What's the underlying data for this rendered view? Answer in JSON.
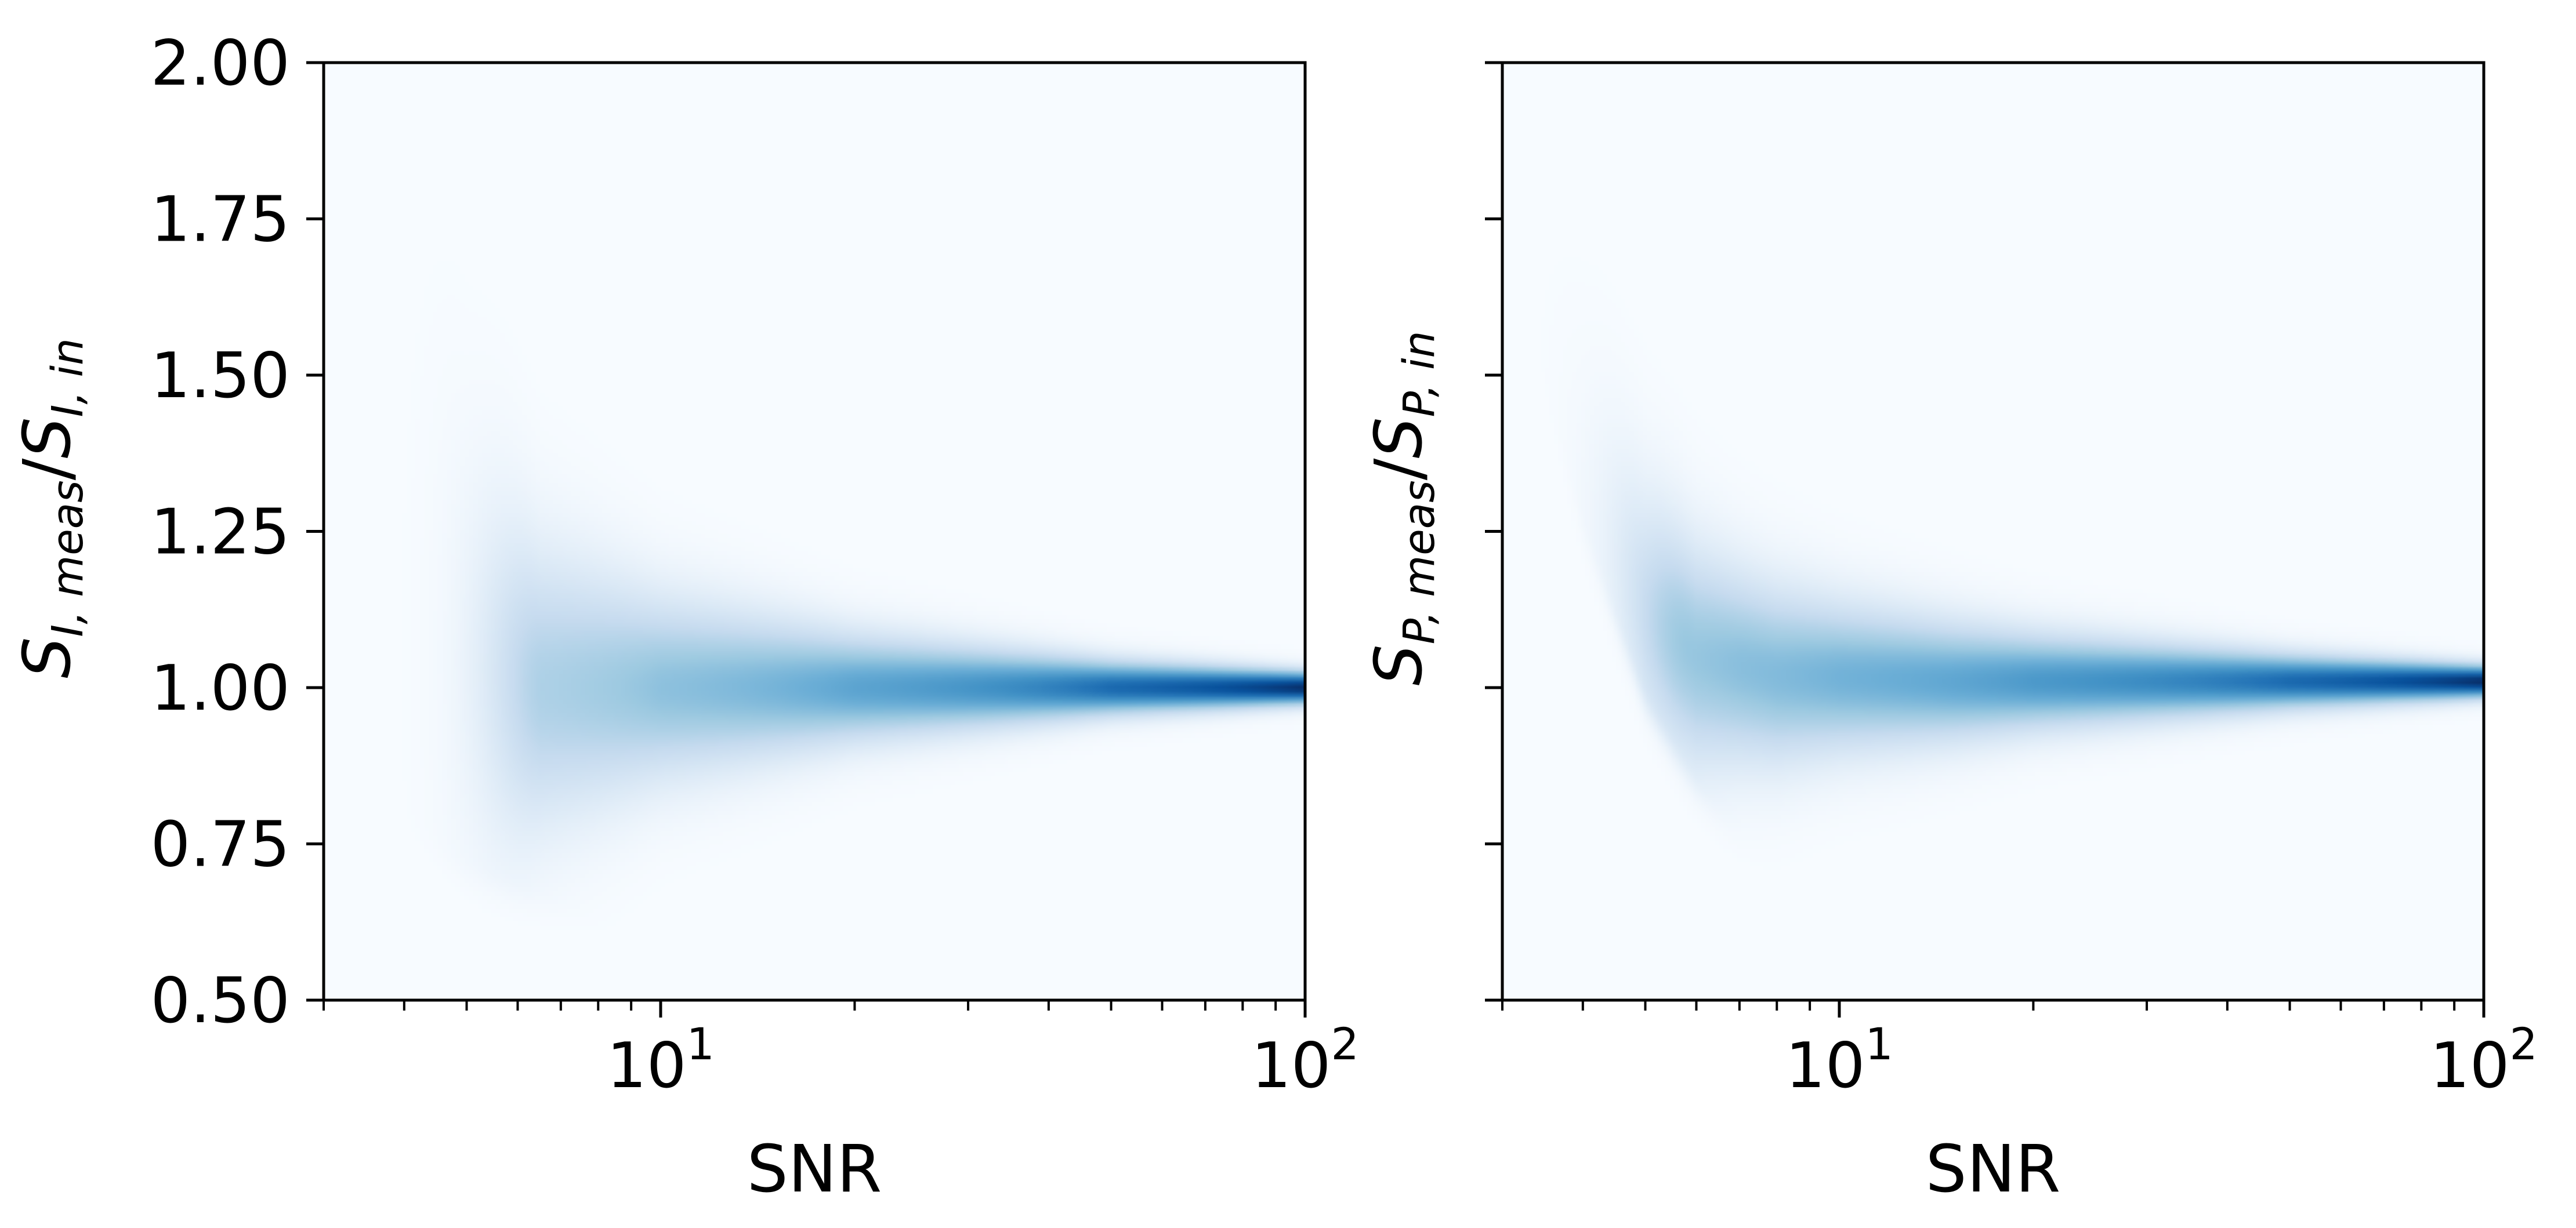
{
  "chart_data": [
    {
      "type": "heatmap",
      "panel": "left",
      "xlabel": "SNR",
      "ylabel": {
        "base": "S",
        "sub1": "I, meas",
        "slash": "/",
        "sub2": "I, in"
      },
      "xscale": "log",
      "xlim": [
        3,
        100
      ],
      "ylim": [
        0.5,
        2.0
      ],
      "x_ticks": [
        {
          "value": 10,
          "base": "10",
          "exp": "1"
        },
        {
          "value": 100,
          "base": "10",
          "exp": "2"
        }
      ],
      "y_ticks": [
        {
          "value": 0.5,
          "label": "0.50"
        },
        {
          "value": 0.75,
          "label": "0.75"
        },
        {
          "value": 1.0,
          "label": "1.00"
        },
        {
          "value": 1.25,
          "label": "1.25"
        },
        {
          "value": 1.5,
          "label": "1.50"
        },
        {
          "value": 1.75,
          "label": "1.75"
        },
        {
          "value": 2.0,
          "label": "2.00"
        }
      ],
      "density_model": {
        "peak_snr": 6.5,
        "mean_ratio_curve": [
          [
            3,
            1.1
          ],
          [
            5,
            1.04
          ],
          [
            6.5,
            1.0
          ],
          [
            10,
            1.0
          ],
          [
            30,
            1.0
          ],
          [
            100,
            1.0
          ]
        ],
        "spread_curve": [
          [
            3,
            0.5
          ],
          [
            4,
            0.35
          ],
          [
            5,
            0.2
          ],
          [
            6.5,
            0.13
          ],
          [
            10,
            0.085
          ],
          [
            20,
            0.05
          ],
          [
            50,
            0.025
          ],
          [
            100,
            0.015
          ]
        ],
        "lower_cutoff_curve": [
          [
            3,
            1.0
          ],
          [
            4,
            0.82
          ],
          [
            5,
            0.73
          ],
          [
            6.5,
            0.68
          ],
          [
            10,
            0.6
          ],
          [
            100,
            0.5
          ]
        ],
        "colormap": "Blues"
      },
      "grid": false,
      "legend": "none"
    },
    {
      "type": "heatmap",
      "panel": "right",
      "xlabel": "SNR",
      "ylabel": {
        "base": "S",
        "sub1": "P, meas",
        "slash": "/",
        "sub2": "P, in"
      },
      "xscale": "log",
      "xlim": [
        3,
        100
      ],
      "ylim": [
        0.5,
        2.0
      ],
      "y_tick_labels_shown": false,
      "x_ticks": [
        {
          "value": 10,
          "base": "10",
          "exp": "1"
        },
        {
          "value": 100,
          "base": "10",
          "exp": "2"
        }
      ],
      "y_ticks": [
        {
          "value": 0.5
        },
        {
          "value": 0.75
        },
        {
          "value": 1.0
        },
        {
          "value": 1.25
        },
        {
          "value": 1.5
        },
        {
          "value": 1.75
        },
        {
          "value": 2.0
        }
      ],
      "density_model": {
        "peak_snr": 5.8,
        "mean_ratio_curve": [
          [
            3,
            1.65
          ],
          [
            4,
            1.3
          ],
          [
            5,
            1.12
          ],
          [
            6,
            1.05
          ],
          [
            8,
            1.02
          ],
          [
            15,
            1.01
          ],
          [
            100,
            1.01
          ]
        ],
        "spread_curve": [
          [
            3,
            0.18
          ],
          [
            4,
            0.15
          ],
          [
            5,
            0.12
          ],
          [
            7,
            0.09
          ],
          [
            10,
            0.07
          ],
          [
            20,
            0.045
          ],
          [
            50,
            0.025
          ],
          [
            100,
            0.015
          ]
        ],
        "lower_cutoff_curve": [
          [
            3,
            1.8
          ],
          [
            4,
            1.28
          ],
          [
            5,
            1.0
          ],
          [
            6,
            0.86
          ],
          [
            7,
            0.77
          ],
          [
            8,
            0.72
          ],
          [
            10,
            0.68
          ],
          [
            100,
            0.5
          ]
        ],
        "colormap": "Blues"
      },
      "grid": false,
      "legend": "none"
    }
  ]
}
